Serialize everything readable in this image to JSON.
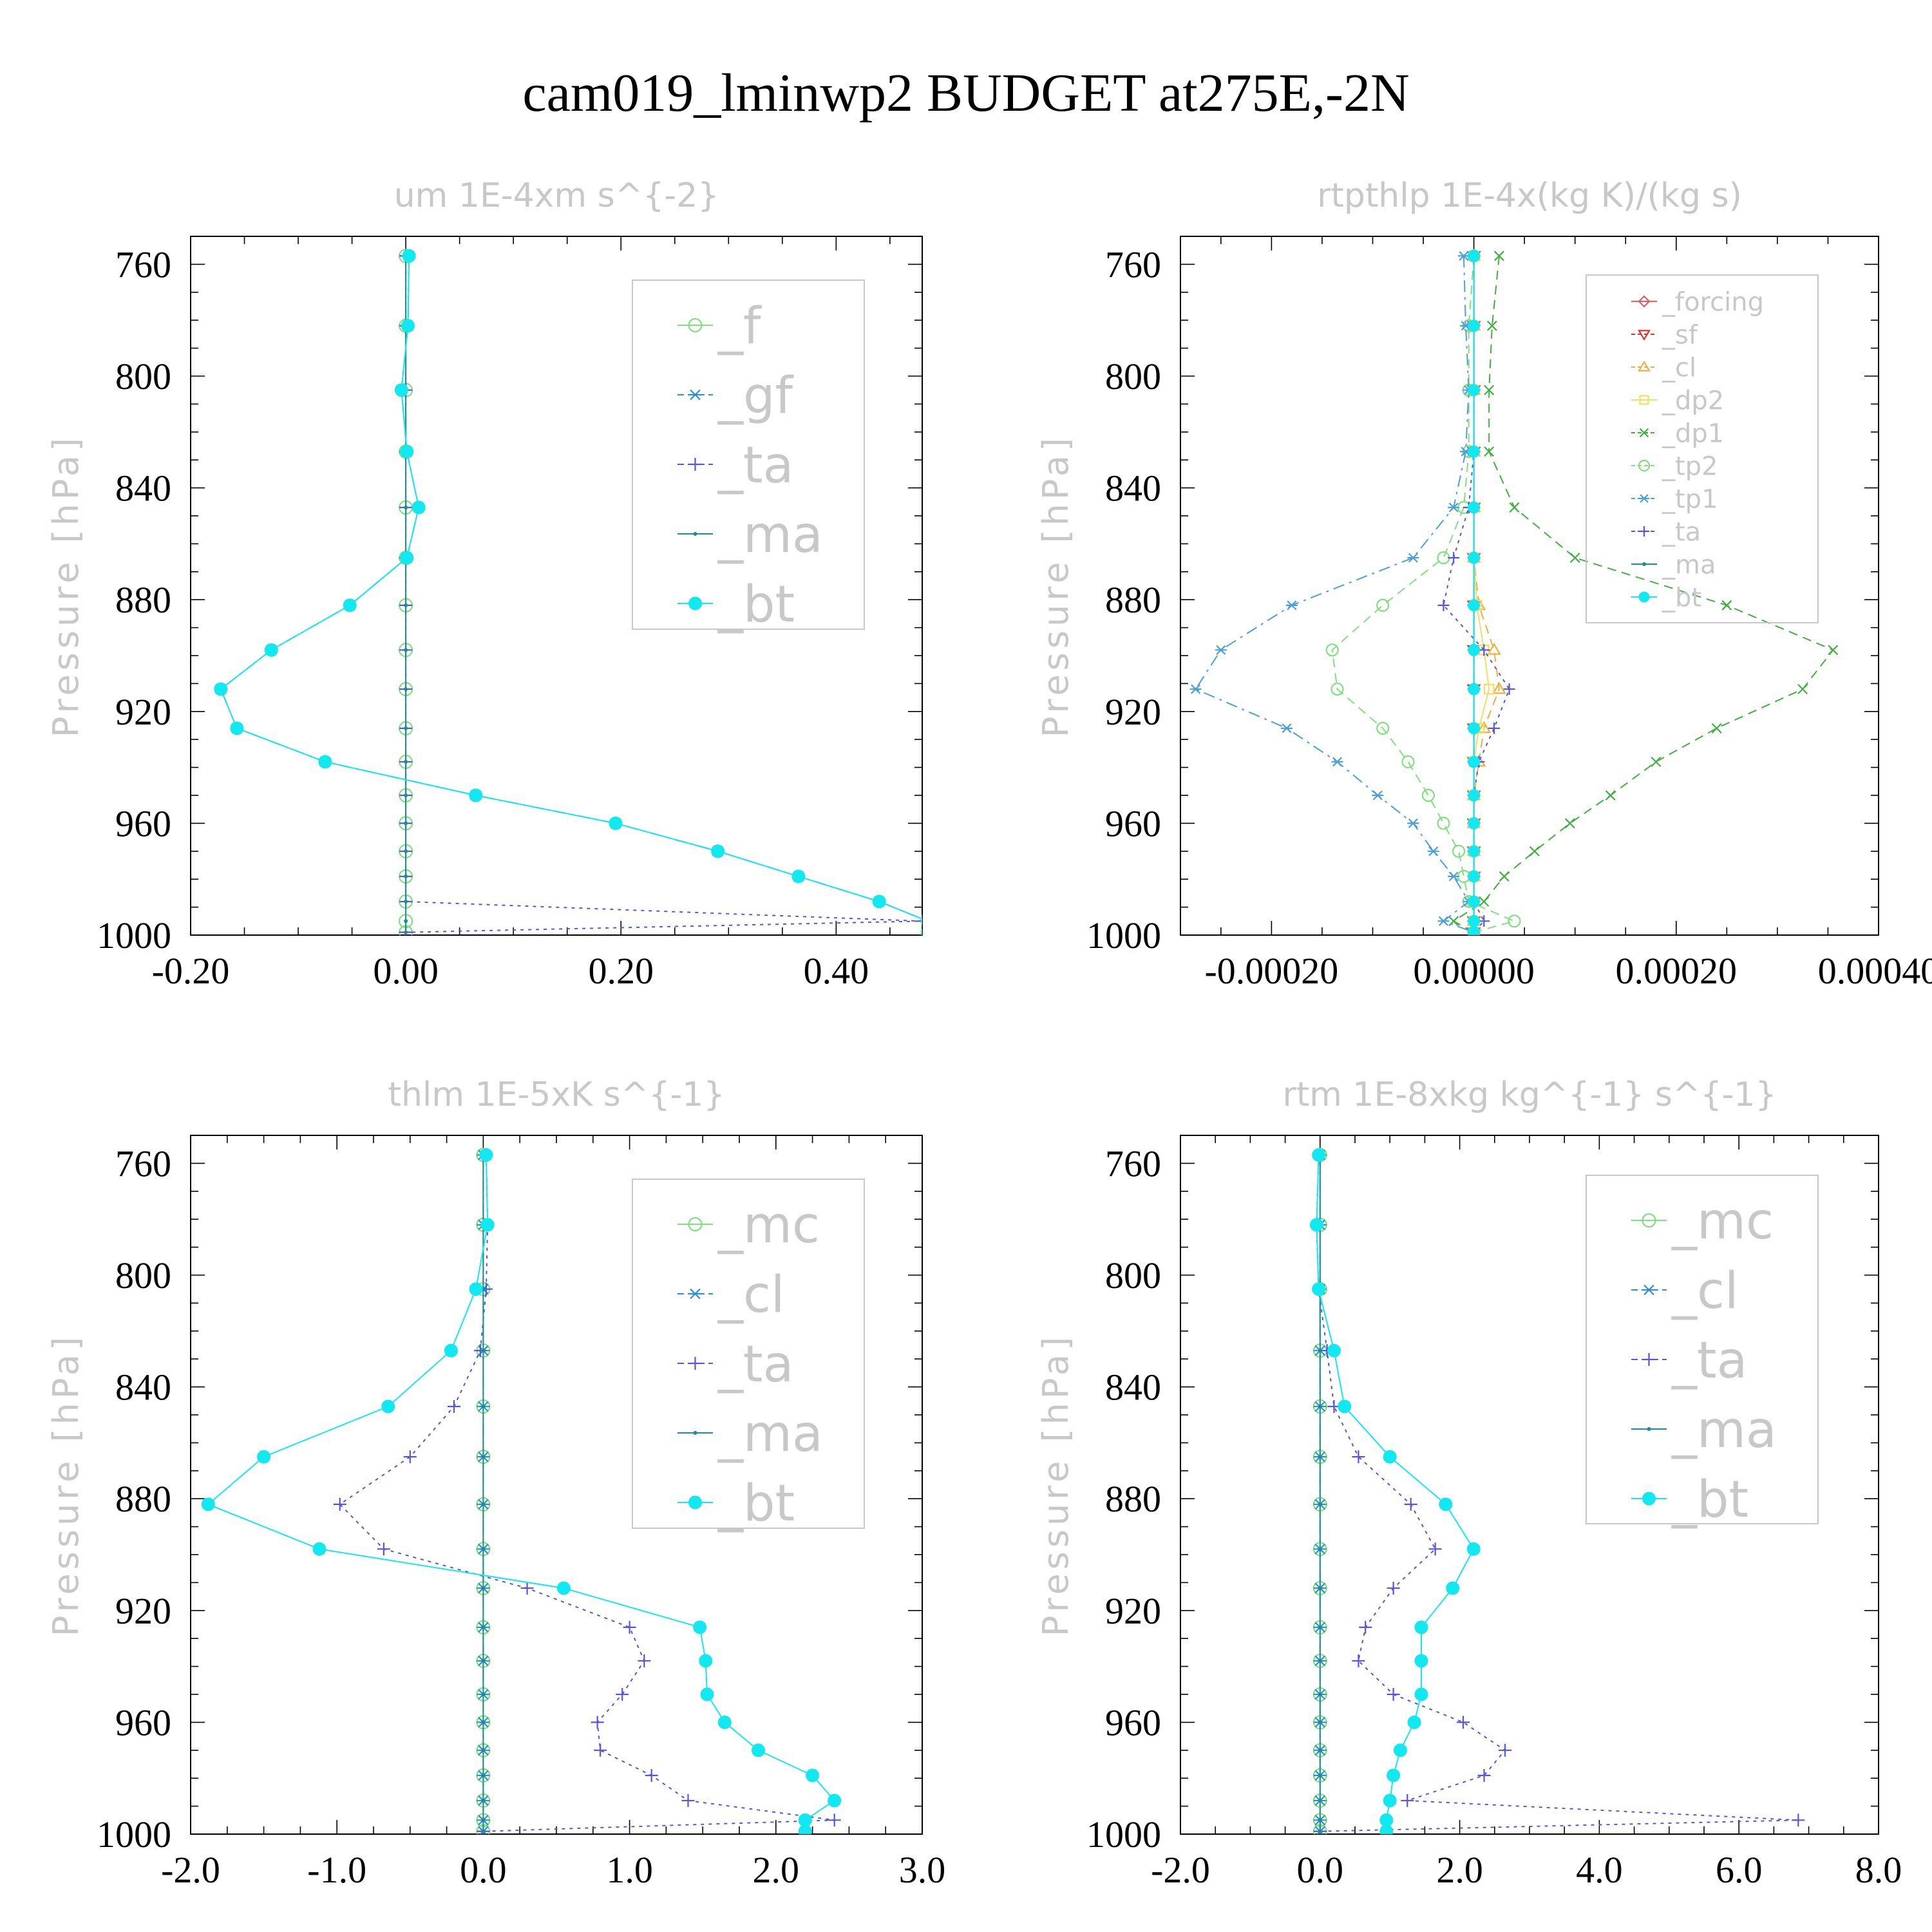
{
  "figure_title": "cam019_lminwp2  BUDGET at275E,-2N",
  "chart_data": [
    {
      "type": "line",
      "title": "um   1E-4xm s^{-2}",
      "ylabel": "Pressure [hPa]",
      "xlim": [
        -0.2,
        0.48
      ],
      "ylim": [
        750,
        1000
      ],
      "x_ticks": [
        "-0.20",
        "0.00",
        "0.20",
        "0.40"
      ],
      "x_tick_values": [
        -0.2,
        0.0,
        0.2,
        0.4
      ],
      "y_ticks": [
        "760",
        "800",
        "840",
        "880",
        "920",
        "960",
        "1000"
      ],
      "y_tick_values": [
        760,
        800,
        840,
        880,
        "920",
        960,
        1000
      ],
      "pressure_levels": [
        757,
        782,
        805,
        827,
        847,
        865,
        882,
        898,
        912,
        926,
        938,
        950,
        960,
        970,
        979,
        988,
        995,
        999
      ],
      "legend_size": "large",
      "series": [
        {
          "name": "_f",
          "color": "#7fe07f",
          "marker": "circle",
          "dash": "solid",
          "values": [
            0,
            0,
            0,
            0,
            0,
            0,
            0,
            0,
            0,
            0,
            0,
            0,
            0,
            0,
            0,
            0,
            0,
            0
          ]
        },
        {
          "name": "_gf",
          "color": "#2f8fd0",
          "marker": "star",
          "dash": "dashdot",
          "values": [
            0.003,
            0.002,
            -0.004,
            0.001,
            0.012,
            0.001,
            -0.052,
            -0.125,
            -0.172,
            -0.157,
            -0.075,
            0.065,
            0.195,
            0.29,
            0.365,
            0.44,
            0.485,
            0.485
          ]
        },
        {
          "name": "_ta",
          "color": "#5555dd",
          "marker": "plus",
          "dash": "dotted",
          "values": [
            0,
            0,
            0,
            0,
            0,
            0,
            0,
            0,
            0,
            0,
            0,
            0,
            0,
            0,
            0,
            0,
            0.48,
            0
          ]
        },
        {
          "name": "_ma",
          "color": "#1a8f8f",
          "marker": "dot",
          "dash": "solid",
          "values": [
            0,
            0,
            0,
            0,
            0,
            0,
            0,
            0,
            0,
            0,
            0,
            0,
            0,
            0,
            0,
            0,
            0,
            0
          ]
        },
        {
          "name": "_bt",
          "color": "#11e8f0",
          "marker": "filled",
          "dash": "solid",
          "values": [
            0.003,
            0.002,
            -0.004,
            0.001,
            0.012,
            0.001,
            -0.052,
            -0.125,
            -0.172,
            -0.157,
            -0.075,
            0.065,
            0.195,
            0.29,
            0.365,
            0.44,
            0.485,
            0.485
          ]
        }
      ]
    },
    {
      "type": "line",
      "title": "rtpthlp   1E-4x(kg K)/(kg s)",
      "ylabel": "Pressure [hPa]",
      "xlim": [
        -0.00029,
        0.0004
      ],
      "ylim": [
        750,
        1000
      ],
      "x_ticks": [
        "-0.00020",
        "0.00000",
        "0.00020",
        "0.00040"
      ],
      "x_tick_values": [
        -0.0002,
        0.0,
        0.0002,
        0.0004
      ],
      "y_ticks": [
        "760",
        "800",
        "840",
        "880",
        "920",
        "960",
        "1000"
      ],
      "y_tick_values": [
        760,
        800,
        840,
        880,
        920,
        960,
        1000
      ],
      "pressure_levels": [
        757,
        782,
        805,
        827,
        847,
        865,
        882,
        898,
        912,
        926,
        938,
        950,
        960,
        970,
        979,
        988,
        995,
        999
      ],
      "legend_size": "small",
      "series": [
        {
          "name": "_forcing",
          "color": "#e06060",
          "marker": "diamond",
          "dash": "solid",
          "values": [
            0,
            0,
            0,
            0,
            0,
            0,
            0,
            0,
            0,
            0,
            0,
            0,
            0,
            0,
            0,
            0,
            0,
            0
          ]
        },
        {
          "name": "_sf",
          "color": "#e03030",
          "marker": "triangle-down",
          "dash": "dashed",
          "values": [
            0,
            0,
            0,
            0,
            0,
            0,
            0,
            0,
            0,
            0,
            0,
            0,
            0,
            0,
            0,
            0,
            0,
            0
          ]
        },
        {
          "name": "_cl",
          "color": "#f0b040",
          "marker": "triangle-up",
          "dash": "dashed",
          "values": [
            0,
            0,
            0,
            0,
            0,
            0,
            5e-06,
            2e-05,
            2.5e-05,
            1e-05,
            5e-06,
            0,
            0,
            0,
            0,
            0,
            0,
            0
          ]
        },
        {
          "name": "_dp2",
          "color": "#f0e060",
          "marker": "square",
          "dash": "solid",
          "values": [
            0,
            0,
            0,
            0,
            0,
            0,
            3e-06,
            1e-05,
            1.5e-05,
            5e-06,
            0,
            0,
            0,
            0,
            0,
            0,
            0,
            0
          ]
        },
        {
          "name": "_dp1",
          "color": "#40b040",
          "marker": "cross",
          "dash": "dashed",
          "values": [
            2.5e-05,
            1.8e-05,
            1.5e-05,
            1.5e-05,
            4e-05,
            0.0001,
            0.00025,
            0.000355,
            0.000325,
            0.00024,
            0.00018,
            0.000135,
            9.5e-05,
            6e-05,
            3e-05,
            1e-05,
            -2e-05,
            0
          ]
        },
        {
          "name": "_tp2",
          "color": "#80e080",
          "marker": "circle",
          "dash": "dashed",
          "values": [
            0,
            -5e-06,
            -5e-06,
            -5e-06,
            -1e-05,
            -3e-05,
            -9e-05,
            -0.00014,
            -0.000135,
            -9e-05,
            -6.5e-05,
            -4.5e-05,
            -3e-05,
            -1.5e-05,
            -1e-05,
            -5e-06,
            4e-05,
            0
          ]
        },
        {
          "name": "_tp1",
          "color": "#4aa0d8",
          "marker": "star",
          "dash": "dashdot",
          "values": [
            -1e-05,
            -8e-06,
            -5e-06,
            -8e-06,
            -2e-05,
            -6e-05,
            -0.00018,
            -0.00025,
            -0.000275,
            -0.000185,
            -0.000135,
            -9.5e-05,
            -6e-05,
            -4e-05,
            -2e-05,
            -5e-06,
            -3e-05,
            0
          ]
        },
        {
          "name": "_ta",
          "color": "#5555dd",
          "marker": "plus",
          "dash": "dotted",
          "values": [
            0,
            0,
            0,
            0,
            -5e-06,
            -2e-05,
            -3e-05,
            1e-05,
            3.5e-05,
            2e-05,
            5e-06,
            0,
            0,
            0,
            0,
            0,
            1e-05,
            0
          ]
        },
        {
          "name": "_ma",
          "color": "#1a8f8f",
          "marker": "dot",
          "dash": "solid",
          "values": [
            0,
            0,
            0,
            0,
            0,
            0,
            0,
            0,
            0,
            0,
            0,
            0,
            0,
            0,
            0,
            0,
            0,
            0
          ]
        },
        {
          "name": "_bt",
          "color": "#11e8f0",
          "marker": "filled",
          "dash": "solid",
          "values": [
            0,
            0,
            0,
            0,
            0,
            0,
            0,
            0,
            0,
            0,
            0,
            0,
            0,
            0,
            0,
            0,
            0,
            0
          ]
        }
      ]
    },
    {
      "type": "line",
      "title": "thlm   1E-5xK s^{-1}",
      "ylabel": "Pressure [hPa]",
      "xlim": [
        -2.0,
        3.0
      ],
      "ylim": [
        750,
        1000
      ],
      "x_ticks": [
        "-2.0",
        "-1.0",
        "0.0",
        "1.0",
        "2.0",
        "3.0"
      ],
      "x_tick_values": [
        -2.0,
        -1.0,
        0.0,
        1.0,
        2.0,
        3.0
      ],
      "y_ticks": [
        "760",
        "800",
        "840",
        "880",
        "920",
        "960",
        "1000"
      ],
      "y_tick_values": [
        760,
        800,
        840,
        880,
        920,
        960,
        1000
      ],
      "pressure_levels": [
        757,
        782,
        805,
        827,
        847,
        865,
        882,
        898,
        912,
        926,
        938,
        950,
        960,
        970,
        979,
        988,
        995,
        999
      ],
      "legend_size": "large",
      "series": [
        {
          "name": "_mc",
          "color": "#7fe07f",
          "marker": "circle",
          "dash": "solid",
          "values": [
            0,
            0,
            0,
            0,
            0,
            0,
            0,
            0,
            0,
            0,
            0,
            0,
            0,
            0,
            0,
            0,
            0,
            0
          ]
        },
        {
          "name": "_cl",
          "color": "#2f8fd0",
          "marker": "star",
          "dash": "dashdot",
          "values": [
            0,
            0,
            0,
            0,
            0,
            0,
            0,
            0,
            0,
            0,
            0,
            0,
            0,
            0,
            0,
            0,
            0,
            0
          ]
        },
        {
          "name": "_ta",
          "color": "#5555dd",
          "marker": "plus",
          "dash": "dotted",
          "values": [
            0.02,
            0.03,
            0.02,
            -0.02,
            -0.2,
            -0.5,
            -0.98,
            -0.68,
            0.3,
            1.0,
            1.1,
            0.95,
            0.78,
            0.8,
            1.15,
            1.4,
            2.4,
            0
          ]
        },
        {
          "name": "_ma",
          "color": "#1a8f8f",
          "marker": "dot",
          "dash": "solid",
          "values": [
            0,
            0,
            0,
            0,
            0,
            0,
            0,
            0,
            0,
            0,
            0,
            0,
            0,
            0,
            0,
            0,
            0,
            0
          ]
        },
        {
          "name": "_bt",
          "color": "#11e8f0",
          "marker": "filled",
          "dash": "solid",
          "values": [
            0.02,
            0.03,
            -0.05,
            -0.22,
            -0.65,
            -1.5,
            -1.88,
            -1.12,
            0.55,
            1.48,
            1.52,
            1.53,
            1.65,
            1.88,
            2.25,
            2.4,
            2.2,
            2.2
          ]
        }
      ]
    },
    {
      "type": "line",
      "title": "rtm   1E-8xkg kg^{-1} s^{-1}",
      "ylabel": "Pressure [hPa]",
      "xlim": [
        -2.0,
        8.0
      ],
      "ylim": [
        750,
        1000
      ],
      "x_ticks": [
        "-2.0",
        "0.0",
        "2.0",
        "4.0",
        "6.0",
        "8.0"
      ],
      "x_tick_values": [
        -2.0,
        0.0,
        2.0,
        4.0,
        6.0,
        8.0
      ],
      "y_ticks": [
        "760",
        "800",
        "840",
        "880",
        "920",
        "960",
        "1000"
      ],
      "y_tick_values": [
        760,
        800,
        840,
        880,
        920,
        960,
        1000
      ],
      "pressure_levels": [
        757,
        782,
        805,
        827,
        847,
        865,
        882,
        898,
        912,
        926,
        938,
        950,
        960,
        970,
        979,
        988,
        995,
        999
      ],
      "legend_size": "large",
      "series": [
        {
          "name": "_mc",
          "color": "#7fe07f",
          "marker": "circle",
          "dash": "solid",
          "values": [
            0,
            0,
            0,
            0,
            0,
            0,
            0,
            0,
            0,
            0,
            0,
            0,
            0,
            0,
            0,
            0,
            0,
            0
          ]
        },
        {
          "name": "_cl",
          "color": "#2f8fd0",
          "marker": "star",
          "dash": "dashdot",
          "values": [
            0,
            0,
            0,
            0,
            0,
            0,
            0,
            0,
            0,
            0,
            0,
            0,
            0,
            0,
            0,
            0,
            0,
            0
          ]
        },
        {
          "name": "_ta",
          "color": "#5555dd",
          "marker": "plus",
          "dash": "dotted",
          "values": [
            -0.02,
            -0.05,
            -0.02,
            0.1,
            0.2,
            0.55,
            1.3,
            1.65,
            1.05,
            0.65,
            0.55,
            1.05,
            2.05,
            2.65,
            2.35,
            1.25,
            6.85,
            0
          ]
        },
        {
          "name": "_ma",
          "color": "#1a8f8f",
          "marker": "dot",
          "dash": "solid",
          "values": [
            0,
            0,
            0,
            0,
            0,
            0,
            0,
            0,
            0,
            0,
            0,
            0,
            0,
            0,
            0,
            0,
            0,
            0
          ]
        },
        {
          "name": "_bt",
          "color": "#11e8f0",
          "marker": "filled",
          "dash": "solid",
          "values": [
            -0.02,
            -0.05,
            -0.02,
            0.2,
            0.35,
            1.0,
            1.8,
            2.2,
            1.9,
            1.45,
            1.45,
            1.45,
            1.35,
            1.15,
            1.05,
            1.0,
            0.95,
            0.95
          ]
        }
      ]
    }
  ]
}
